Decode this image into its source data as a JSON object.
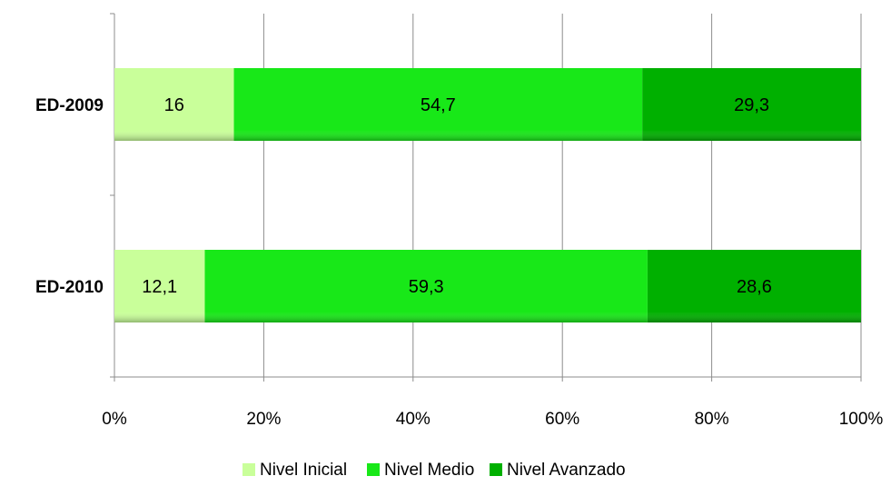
{
  "chart_data": {
    "type": "bar",
    "orientation": "horizontal",
    "stacked": "percent",
    "categories": [
      "ED-2009",
      "ED-2010"
    ],
    "series": [
      {
        "name": "Nivel Inicial",
        "values": [
          16,
          12.1
        ],
        "labels": [
          "16",
          "12,1"
        ],
        "color": "#c9ff9a"
      },
      {
        "name": "Nivel Medio",
        "values": [
          54.7,
          59.3
        ],
        "labels": [
          "54,7",
          "59,3"
        ],
        "color": "#18e818"
      },
      {
        "name": "Nivel Avanzado",
        "values": [
          29.3,
          28.6
        ],
        "labels": [
          "29,3",
          "28,6"
        ],
        "color": "#00b000"
      }
    ],
    "x_ticks": [
      "0%",
      "20%",
      "40%",
      "60%",
      "80%",
      "100%"
    ],
    "xlim": [
      0,
      100
    ],
    "grid": true,
    "legend_position": "bottom"
  }
}
